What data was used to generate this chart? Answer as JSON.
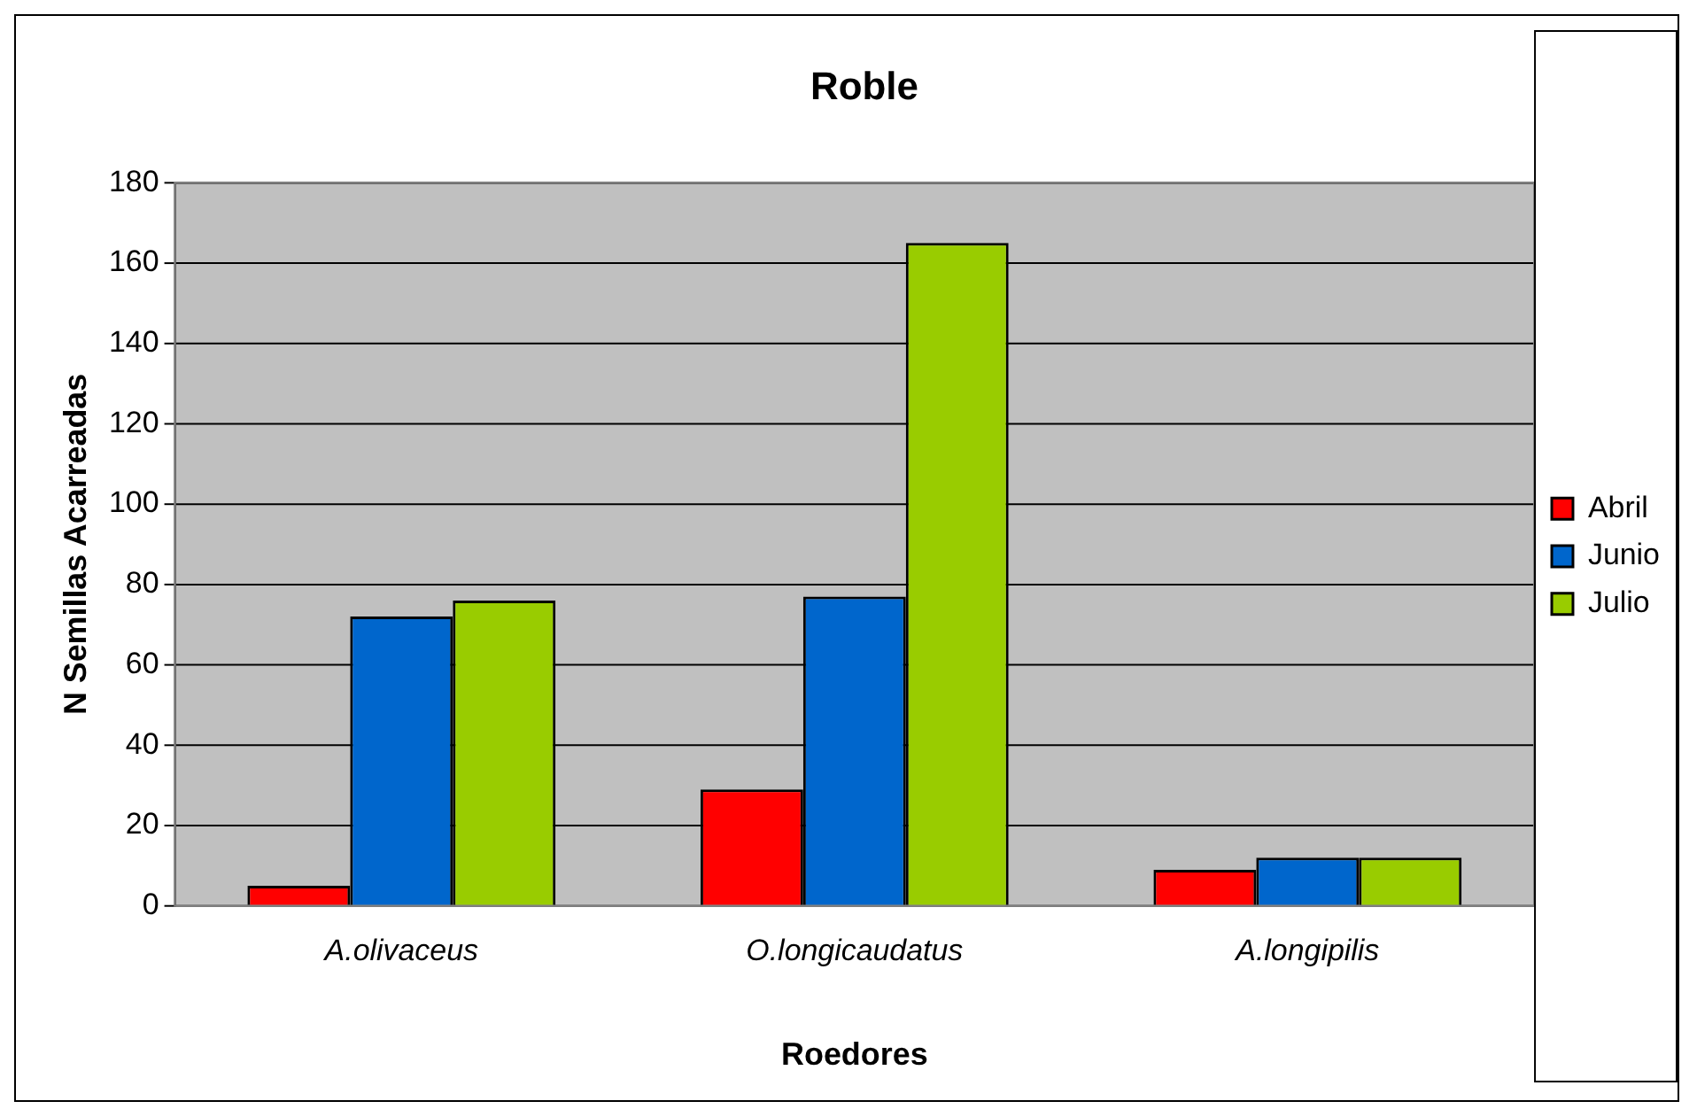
{
  "chart_data": {
    "type": "bar",
    "title": "Roble",
    "xlabel": "Roedores",
    "ylabel": "N Semillas Acarreadas",
    "categories": [
      "A.olivaceus",
      "O.longicaudatus",
      "A.longipilis"
    ],
    "series": [
      {
        "name": "Abril",
        "color": "#ff0000",
        "values": [
          5,
          29,
          9
        ]
      },
      {
        "name": "Junio",
        "color": "#0066cc",
        "values": [
          72,
          77,
          12
        ]
      },
      {
        "name": "Julio",
        "color": "#99cc00",
        "values": [
          76,
          165,
          12
        ]
      }
    ],
    "ylim": [
      0,
      180
    ],
    "yticks": [
      0,
      20,
      40,
      60,
      80,
      100,
      120,
      140,
      160,
      180
    ],
    "grid": "y",
    "legend": "right"
  }
}
